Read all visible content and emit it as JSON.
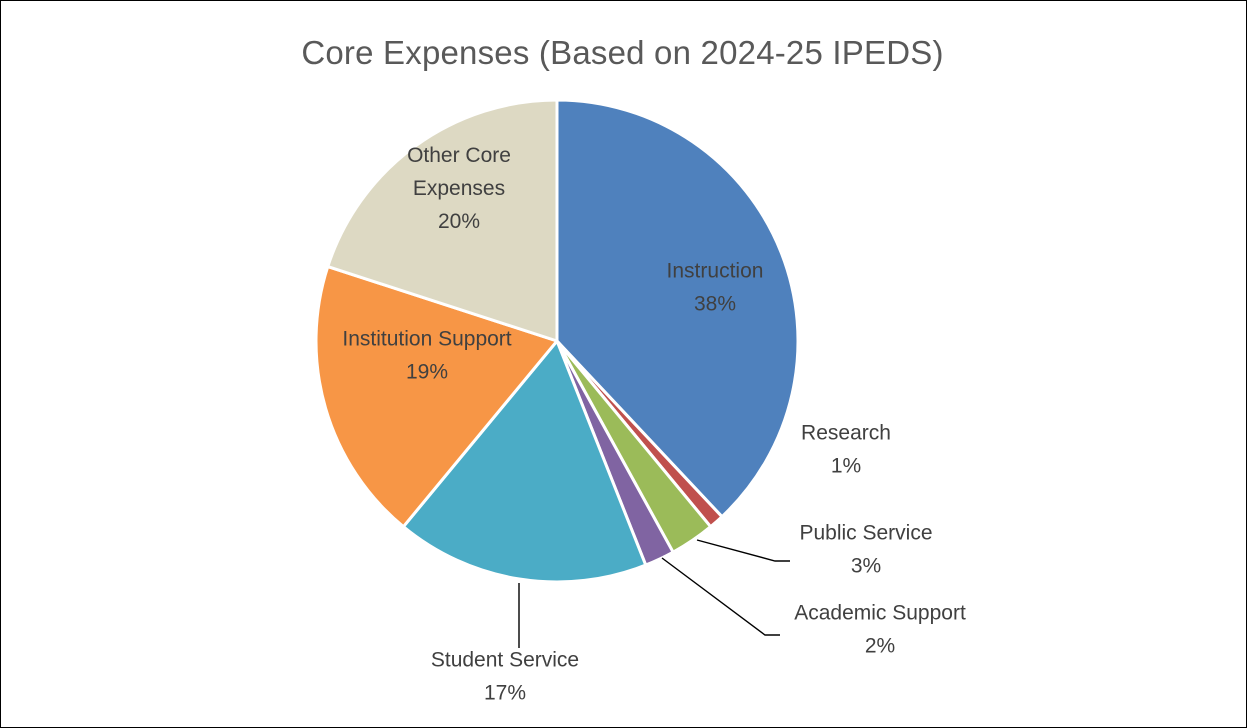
{
  "chart_data": {
    "type": "pie",
    "title": "Core Expenses (Based on 2024-25 IPEDS)",
    "slices": [
      {
        "name": "Instruction",
        "label": "Instruction",
        "pct_label": "38%",
        "value": 38,
        "color": "#4f81bd"
      },
      {
        "name": "Research",
        "label": "Research",
        "pct_label": "1%",
        "value": 1,
        "color": "#c0504d"
      },
      {
        "name": "Public Service",
        "label": "Public Service",
        "pct_label": "3%",
        "value": 3,
        "color": "#9bbb59"
      },
      {
        "name": "Academic Support",
        "label": "Academic Support",
        "pct_label": "2%",
        "value": 2,
        "color": "#8064a2"
      },
      {
        "name": "Student Service",
        "label": "Student Service",
        "pct_label": "17%",
        "value": 17,
        "color": "#4bacc6"
      },
      {
        "name": "Institution Support",
        "label": "Institution Support",
        "pct_label": "19%",
        "value": 19,
        "color": "#f79646"
      },
      {
        "name": "Other Core Expenses",
        "label": "Other Core\nExpenses",
        "pct_label": "20%",
        "value": 20,
        "color": "#ddd9c3"
      }
    ],
    "legend": "none",
    "start_angle": "12 o'clock",
    "direction": "clockwise"
  }
}
